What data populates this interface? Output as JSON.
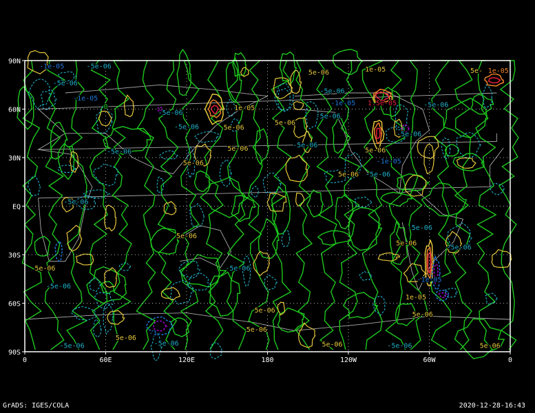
{
  "footer": {
    "left": "GrADS: IGES/COLA",
    "right": "2020-12-28-16:43"
  },
  "map": {
    "lon_range": [
      0,
      360
    ],
    "lat_range": [
      -90,
      90
    ],
    "lat_ticks": [
      {
        "v": 90,
        "label": "90N"
      },
      {
        "v": 60,
        "label": "60N"
      },
      {
        "v": 30,
        "label": "30N"
      },
      {
        "v": 0,
        "label": "EQ"
      },
      {
        "v": -30,
        "label": "30S"
      },
      {
        "v": -60,
        "label": "60S"
      },
      {
        "v": -90,
        "label": "90S"
      }
    ],
    "lon_ticks": [
      {
        "v": 0,
        "label": "0"
      },
      {
        "v": 60,
        "label": "60E"
      },
      {
        "v": 120,
        "label": "120E"
      },
      {
        "v": 180,
        "label": "180"
      },
      {
        "v": 240,
        "label": "120W"
      },
      {
        "v": 300,
        "label": "60W"
      },
      {
        "v": 360,
        "label": "0"
      }
    ],
    "grid": true,
    "colors": {
      "zero": "#1ec81e",
      "pos_low": "#e6c83c",
      "pos_mid": "#f08228",
      "pos_high": "#e61e3c",
      "neg_low": "#20b0c8",
      "neg_mid": "#1e78dc",
      "neg_high": "#a000c8",
      "coast": "#aaaaaa"
    },
    "contour_labels": [
      {
        "lon": 20,
        "lat": 87,
        "text": "-1e-05",
        "c": "neg_mid"
      },
      {
        "lon": 55,
        "lat": 87,
        "text": "-5e-06",
        "c": "neg_low"
      },
      {
        "lon": 30,
        "lat": 82,
        "text": "-5e-06",
        "c": "neg_low"
      },
      {
        "lon": 45,
        "lat": 67,
        "text": "-1e-05",
        "c": "neg_mid"
      },
      {
        "lon": 60,
        "lat": 62,
        "text": "0",
        "c": "zero"
      },
      {
        "lon": 70,
        "lat": 34,
        "text": "-5e-06",
        "c": "neg_low"
      },
      {
        "lon": 108,
        "lat": 58,
        "text": "-5e-06",
        "c": "neg_low"
      },
      {
        "lon": 120,
        "lat": 55,
        "text": "-5e-06",
        "c": "neg_low"
      },
      {
        "lon": 163,
        "lat": 61,
        "text": "1e-05",
        "c": "pos_low"
      },
      {
        "lon": 155,
        "lat": 49,
        "text": "5e-06",
        "c": "pos_low"
      },
      {
        "lon": 158,
        "lat": 36,
        "text": "5e-06",
        "c": "pos_low"
      },
      {
        "lon": 125,
        "lat": 27,
        "text": "5e-06",
        "c": "pos_low"
      },
      {
        "lon": 193,
        "lat": 52,
        "text": "5e-06",
        "c": "pos_low"
      },
      {
        "lon": 218,
        "lat": 83,
        "text": "5e-06",
        "c": "pos_low"
      },
      {
        "lon": 228,
        "lat": 77,
        "text": "-5e-06",
        "c": "neg_low"
      },
      {
        "lon": 225,
        "lat": 56,
        "text": "-5e-06",
        "c": "neg_low"
      },
      {
        "lon": 236,
        "lat": 64,
        "text": "-1e-05",
        "c": "neg_mid"
      },
      {
        "lon": 260,
        "lat": 85,
        "text": "1e-05",
        "c": "pos_low"
      },
      {
        "lon": 265,
        "lat": 64,
        "text": "1.5e-05",
        "c": "pos_high"
      },
      {
        "lon": 285,
        "lat": 45,
        "text": "-5e-06",
        "c": "neg_low"
      },
      {
        "lon": 305,
        "lat": 63,
        "text": "-5e-06",
        "c": "neg_low"
      },
      {
        "lon": 260,
        "lat": 35,
        "text": "5e-06",
        "c": "pos_low"
      },
      {
        "lon": 270,
        "lat": 28,
        "text": "-1e-05",
        "c": "neg_mid"
      },
      {
        "lon": 240,
        "lat": 20,
        "text": "5e-06",
        "c": "pos_low"
      },
      {
        "lon": 262,
        "lat": 20,
        "text": "-5e-06",
        "c": "neg_low"
      },
      {
        "lon": 335,
        "lat": 84,
        "text": "5e-",
        "c": "pos_low"
      },
      {
        "lon": 348,
        "lat": 84,
        "text": "1e-05",
        "c": "pos_mid"
      },
      {
        "lon": 38,
        "lat": 3,
        "text": "-5e-06",
        "c": "neg_low"
      },
      {
        "lon": 15,
        "lat": -38,
        "text": "5e-06",
        "c": "pos_low"
      },
      {
        "lon": 25,
        "lat": -38,
        "text": "-5e-06",
        "c": "neg_low"
      },
      {
        "lon": 120,
        "lat": -18,
        "text": "5e-06",
        "c": "pos_low"
      },
      {
        "lon": 158,
        "lat": -38,
        "text": "-5e-06",
        "c": "neg_low"
      },
      {
        "lon": 178,
        "lat": -64,
        "text": "5e-06",
        "c": "pos_low"
      },
      {
        "lon": 172,
        "lat": -76,
        "text": "5e-06",
        "c": "pos_low"
      },
      {
        "lon": 95,
        "lat": -78,
        "text": "-1",
        "c": "neg_mid"
      },
      {
        "lon": 105,
        "lat": -79,
        "text": "-5e-06",
        "c": "neg_low"
      },
      {
        "lon": 75,
        "lat": -81,
        "text": "5e-06",
        "c": "pos_low"
      },
      {
        "lon": 35,
        "lat": -86,
        "text": "-5e-06",
        "c": "neg_low"
      },
      {
        "lon": 228,
        "lat": -85,
        "text": "5e-06",
        "c": "pos_low"
      },
      {
        "lon": 278,
        "lat": -86,
        "text": "-5e-06",
        "c": "neg_low"
      },
      {
        "lon": 345,
        "lat": -86,
        "text": "5e-06",
        "c": "pos_low"
      },
      {
        "lon": 293,
        "lat": -13,
        "text": "-5e-06",
        "c": "neg_low"
      },
      {
        "lon": 283,
        "lat": -17,
        "text": "5e-06",
        "c": "pos_low"
      },
      {
        "lon": 322,
        "lat": -25,
        "text": "-5e-06",
        "c": "neg_low"
      },
      {
        "lon": 300,
        "lat": -45,
        "text": "-1e-05",
        "c": "neg_mid"
      },
      {
        "lon": 290,
        "lat": -56,
        "text": "1e-05",
        "c": "pos_low"
      },
      {
        "lon": 295,
        "lat": -61,
        "text": "5e-06",
        "c": "pos_low"
      },
      {
        "lon": 208,
        "lat": 38,
        "text": "-5e-06",
        "c": "neg_low"
      }
    ]
  }
}
